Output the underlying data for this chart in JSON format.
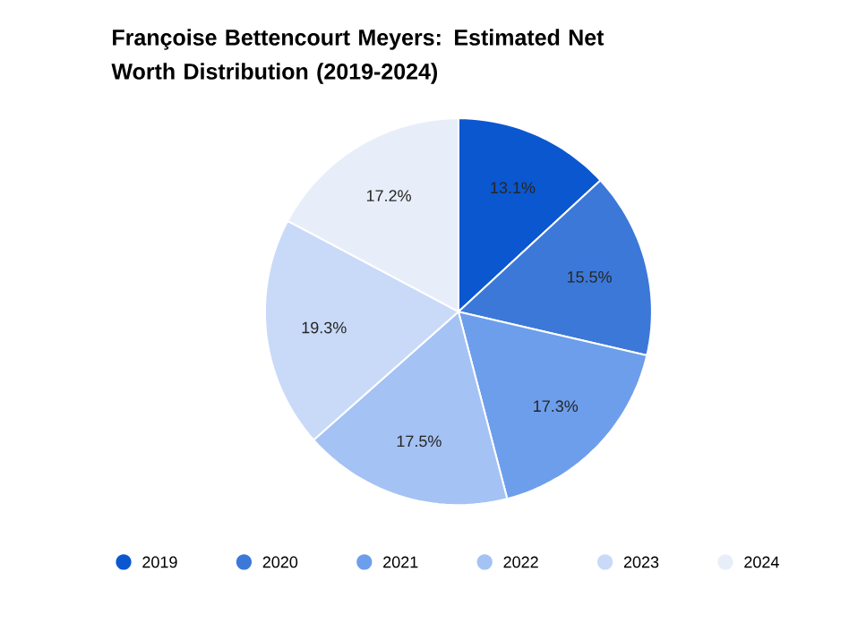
{
  "chart_data": {
    "type": "pie",
    "title": "Françoise Bettencourt Meyers: Estimated Net Worth Distribution (2019-2024)",
    "categories": [
      "2019",
      "2020",
      "2021",
      "2022",
      "2023",
      "2024"
    ],
    "values": [
      13.1,
      15.5,
      17.3,
      17.5,
      19.3,
      17.2
    ],
    "colors": [
      "#0b57d0",
      "#3c78d8",
      "#6d9eeb",
      "#a4c2f4",
      "#c9daf8",
      "#e8eef9"
    ],
    "value_labels": [
      "13.1%",
      "15.5%",
      "17.3%",
      "17.5%",
      "19.3%",
      "17.2%"
    ],
    "legend": "bottom"
  }
}
